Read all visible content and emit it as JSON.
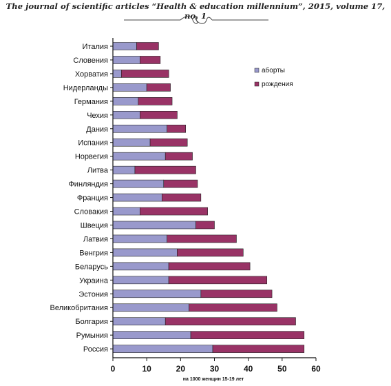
{
  "header": {
    "journal_line": "The journal of scientific articles “Health & education millennium”, 2015, volume 17, no. 1"
  },
  "chart_data": {
    "type": "bar",
    "orientation": "horizontal",
    "stacked": true,
    "categories": [
      "Италия",
      "Словения",
      "Хорватия",
      "Нидерланды",
      "Германия",
      "Чехия",
      "Дания",
      "Испания",
      "Норвегия",
      "Литва",
      "Финляндия",
      "Франция",
      "Словакия",
      "Швеция",
      "Латвия",
      "Венгрия",
      "Беларусь",
      "Украина",
      "Эстония",
      "Великобритания",
      "Болгария",
      "Румыния",
      "Россия"
    ],
    "series": [
      {
        "name": "аборты",
        "color": "#9999cc",
        "values": [
          7,
          8,
          2.5,
          10,
          7.5,
          8,
          16,
          11,
          15.5,
          6.5,
          15,
          14.5,
          8,
          24.5,
          16,
          19,
          16.5,
          16.5,
          26,
          22.5,
          15.5,
          23,
          29.5
        ]
      },
      {
        "name": "рождения",
        "color": "#993366",
        "values": [
          6.5,
          6,
          14,
          7,
          10,
          11,
          5.5,
          11,
          8,
          18,
          10,
          11.5,
          20,
          5.5,
          20.5,
          19.5,
          24,
          29,
          21,
          26,
          38.5,
          33.5,
          27
        ]
      }
    ],
    "xlim": [
      0,
      60
    ],
    "xticks": [
      "0",
      "10",
      "20",
      "30",
      "40",
      "50",
      "60"
    ],
    "xlabel": "на 1000 женщин 15-19 лет",
    "legend_position": "top-right",
    "grid": false
  }
}
